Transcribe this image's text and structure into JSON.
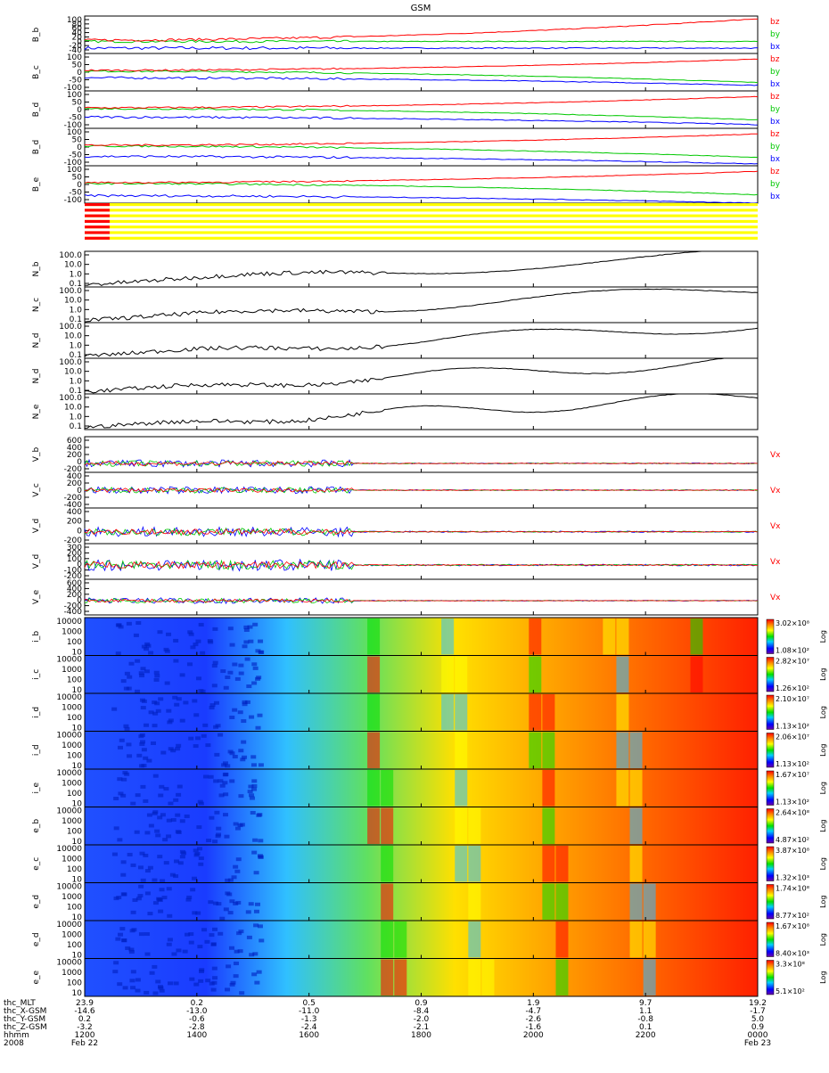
{
  "title": "GSM",
  "colors": {
    "bx": "#0000ff",
    "by": "#00c800",
    "bz": "#ff0000",
    "flag_red": "#ff0000",
    "flag_yellow": "#ffff00",
    "frame": "#000000"
  },
  "chart_data": {
    "type": "line",
    "title": "GSM",
    "x": {
      "tick_labels": [
        "1200",
        "1400",
        "1600",
        "1800",
        "2000",
        "2200",
        "0000"
      ],
      "tick_positions_hours": [
        12,
        14,
        16,
        18,
        20,
        22,
        24
      ],
      "range_hours": [
        12,
        24
      ],
      "date_start": "Feb 22",
      "date_end": "Feb 23",
      "year": "2008"
    },
    "b_panels": [
      {
        "ylabel": "B_b",
        "yticks": [
          "100",
          "80",
          "60",
          "40",
          "20",
          "0",
          "-20",
          "-40"
        ],
        "ylim": [
          -40,
          100
        ],
        "legend": [
          "bz",
          "by",
          "bx"
        ]
      },
      {
        "ylabel": "B_c",
        "yticks": [
          "100",
          "50",
          "0",
          "-50",
          "-100"
        ],
        "ylim": [
          -100,
          100
        ],
        "legend": [
          "bz",
          "by",
          "bx"
        ]
      },
      {
        "ylabel": "B_d",
        "yticks": [
          "100",
          "50",
          "0",
          "-50",
          "-100"
        ],
        "ylim": [
          -100,
          100
        ],
        "legend": [
          "bz",
          "by",
          "bx"
        ]
      },
      {
        "ylabel": "B_d",
        "yticks": [
          "100",
          "50",
          "0",
          "-50",
          "-100"
        ],
        "ylim": [
          -100,
          100
        ],
        "legend": [
          "bz",
          "by",
          "bx"
        ]
      },
      {
        "ylabel": "B_e",
        "yticks": [
          "100",
          "50",
          "0",
          "-50",
          "-100"
        ],
        "ylim": [
          -100,
          100
        ],
        "legend": [
          "bz",
          "by",
          "bx"
        ]
      }
    ],
    "n_panels": [
      {
        "ylabel": "N_b",
        "yticks": [
          "100.0",
          "10.0",
          "1.0",
          "0.1"
        ],
        "scale": "log",
        "ylim": [
          0.1,
          100
        ]
      },
      {
        "ylabel": "N_c",
        "yticks": [
          "100.0",
          "10.0",
          "1.0",
          "0.1"
        ],
        "scale": "log",
        "ylim": [
          0.1,
          100
        ]
      },
      {
        "ylabel": "N_d",
        "yticks": [
          "100.0",
          "10.0",
          "1.0",
          "0.1"
        ],
        "scale": "log",
        "ylim": [
          0.1,
          100
        ]
      },
      {
        "ylabel": "N_d",
        "yticks": [
          "100.0",
          "10.0",
          "1.0",
          "0.1"
        ],
        "scale": "log",
        "ylim": [
          0.1,
          100
        ]
      },
      {
        "ylabel": "N_e",
        "yticks": [
          "100.0",
          "10.0",
          "1.0",
          "0.1"
        ],
        "scale": "log",
        "ylim": [
          0.1,
          100
        ]
      }
    ],
    "v_panels": [
      {
        "ylabel": "V_b",
        "yticks": [
          "600",
          "400",
          "200",
          "0",
          "-200"
        ],
        "ylim": [
          -200,
          600
        ],
        "legend": "Vx"
      },
      {
        "ylabel": "V_c",
        "yticks": [
          "400",
          "200",
          "0",
          "-200",
          "-400"
        ],
        "ylim": [
          -400,
          400
        ],
        "legend": "Vx"
      },
      {
        "ylabel": "V_d",
        "yticks": [
          "400",
          "200",
          "0",
          "-200"
        ],
        "ylim": [
          -200,
          400
        ],
        "legend": "Vx"
      },
      {
        "ylabel": "V_d",
        "yticks": [
          "300",
          "200",
          "100",
          "0",
          "-100",
          "-200"
        ],
        "ylim": [
          -200,
          300
        ],
        "legend": "Vx"
      },
      {
        "ylabel": "V_e",
        "yticks": [
          "600",
          "400",
          "200",
          "0",
          "-200",
          "-400"
        ],
        "ylim": [
          -400,
          600
        ],
        "legend": "Vx"
      }
    ],
    "spectrogram_panels": [
      {
        "ylabel": "i_b",
        "yticks": [
          "10000",
          "1000",
          "100",
          "10"
        ],
        "cbar_max": "3.02×10⁸",
        "cbar_min": "1.08×10²",
        "cbar_label": "Log"
      },
      {
        "ylabel": "i_c",
        "yticks": [
          "10000",
          "1000",
          "100",
          "10"
        ],
        "cbar_max": "2.82×10⁷",
        "cbar_min": "1.26×10²",
        "cbar_label": "Log"
      },
      {
        "ylabel": "i_d",
        "yticks": [
          "10000",
          "1000",
          "100",
          "10"
        ],
        "cbar_max": "2.10×10⁷",
        "cbar_min": "1.13×10²",
        "cbar_label": "Log"
      },
      {
        "ylabel": "i_d",
        "yticks": [
          "10000",
          "1000",
          "100",
          "10"
        ],
        "cbar_max": "2.06×10⁷",
        "cbar_min": "1.13×10²",
        "cbar_label": "Log"
      },
      {
        "ylabel": "i_e",
        "yticks": [
          "10000",
          "1000",
          "100",
          "10"
        ],
        "cbar_max": "1.67×10⁷",
        "cbar_min": "1.13×10²",
        "cbar_label": "Log"
      },
      {
        "ylabel": "e_b",
        "yticks": [
          "10000",
          "1000",
          "100",
          "10"
        ],
        "cbar_max": "2.64×10⁸",
        "cbar_min": "4.87×10²",
        "cbar_label": "Log"
      },
      {
        "ylabel": "e_c",
        "yticks": [
          "10000",
          "1000",
          "100",
          "10"
        ],
        "cbar_max": "3.87×10⁸",
        "cbar_min": "1.32×10³",
        "cbar_label": "Log"
      },
      {
        "ylabel": "e_d",
        "yticks": [
          "10000",
          "1000",
          "100",
          "10"
        ],
        "cbar_max": "1.74×10⁸",
        "cbar_min": "8.77×10²",
        "cbar_label": "Log"
      },
      {
        "ylabel": "e_d",
        "yticks": [
          "10000",
          "1000",
          "100",
          "10"
        ],
        "cbar_max": "1.67×10⁸",
        "cbar_min": "8.40×10³",
        "cbar_label": "Log"
      },
      {
        "ylabel": "e_e",
        "yticks": [
          "10000",
          "1000",
          "100",
          "10"
        ],
        "cbar_max": "3.3×10⁸",
        "cbar_min": "5.1×10²",
        "cbar_label": "Log"
      }
    ],
    "flags_panel": {
      "colors": [
        "red",
        "yellow"
      ]
    },
    "orbit_table": {
      "row_labels": [
        "thc_MLT",
        "thc_X-GSM",
        "thc_Y-GSM",
        "thc_Z-GSM",
        "hhmm",
        "2008"
      ],
      "columns": [
        [
          "23.9",
          "-14.6",
          "0.2",
          "-3.2",
          "1200",
          "Feb 22"
        ],
        [
          "0.2",
          "-13.0",
          "-0.6",
          "-2.8",
          "1400",
          ""
        ],
        [
          "0.5",
          "-11.0",
          "-1.3",
          "-2.4",
          "1600",
          ""
        ],
        [
          "0.9",
          "-8.4",
          "-2.0",
          "-2.1",
          "1800",
          ""
        ],
        [
          "1.9",
          "-4.7",
          "-2.6",
          "-1.6",
          "2000",
          ""
        ],
        [
          "9.7",
          "1.1",
          "-0.8",
          "0.1",
          "2200",
          ""
        ],
        [
          "19.2",
          "-1.7",
          "5.0",
          "0.9",
          "0000",
          "Feb 23"
        ]
      ]
    }
  }
}
